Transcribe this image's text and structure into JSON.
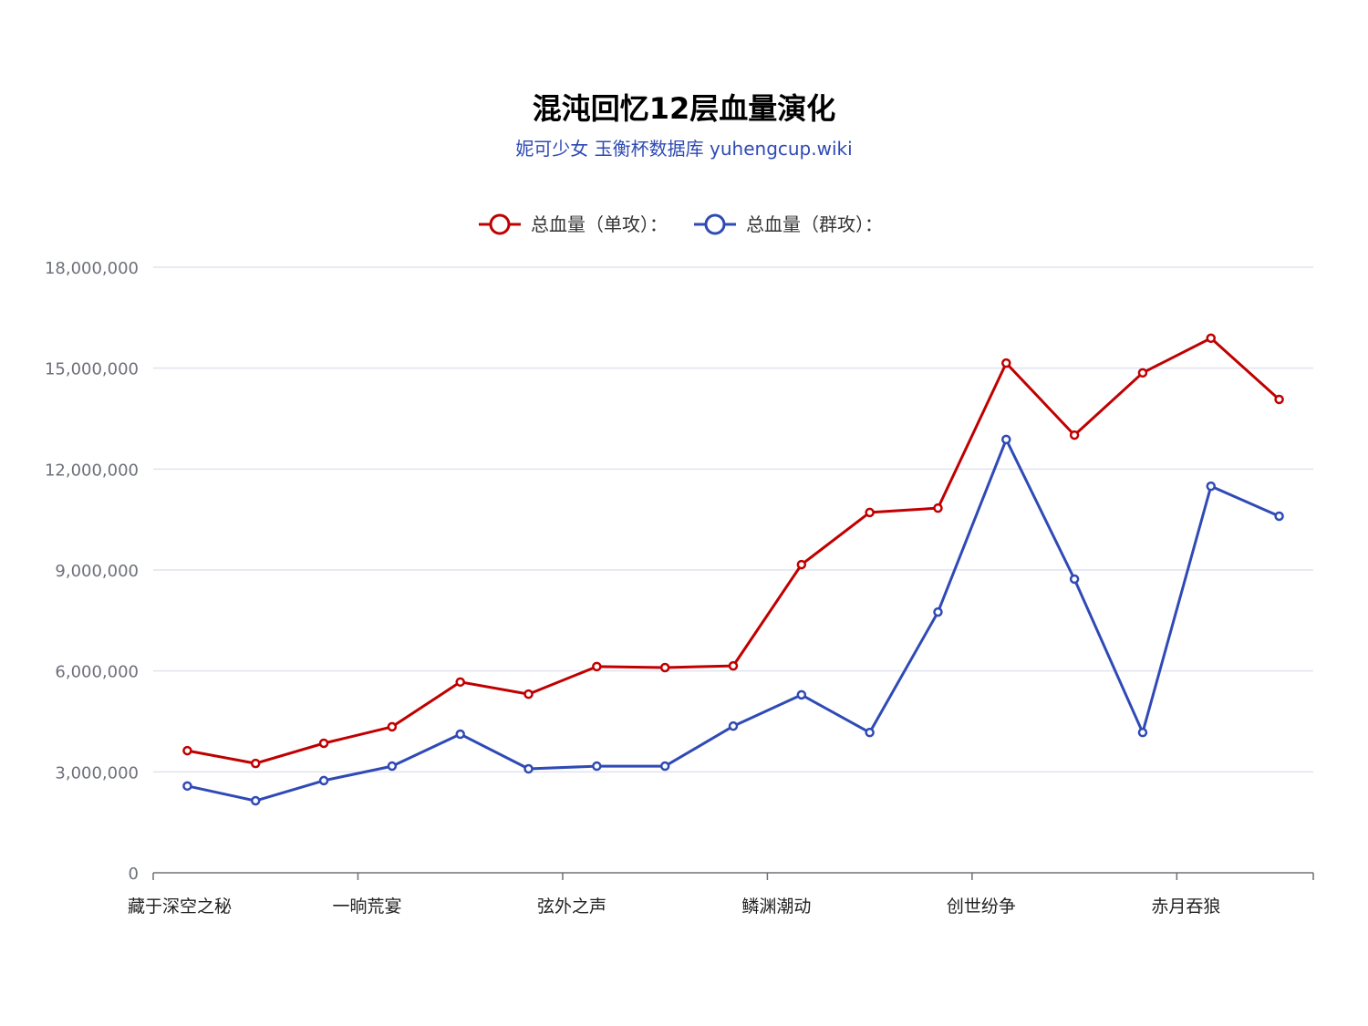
{
  "header": {
    "title": "混沌回忆12层血量演化",
    "subtitle": "妮可少女 玉衡杯数据库 yuhengcup.wiki"
  },
  "legend": {
    "items": [
      {
        "label": "总血量（单攻）：",
        "color": "#c00000"
      },
      {
        "label": "总血量（群攻）：",
        "color": "#2f4ab5"
      }
    ]
  },
  "chart_data": {
    "type": "line",
    "title": "混沌回忆12层血量演化",
    "subtitle": "妮可少女 玉衡杯数据库 yuhengcup.wiki",
    "xlabel": "",
    "ylabel": "",
    "ylim": [
      0,
      18000000
    ],
    "yticks": [
      "0",
      "3,000,000",
      "6,000,000",
      "9,000,000",
      "12,000,000",
      "15,000,000",
      "18,000,000"
    ],
    "xtick_labels": [
      "藏于深空之秘",
      "一晌荒宴",
      "弦外之声",
      "鳞渊潮动",
      "创世纷争",
      "赤月吞狼"
    ],
    "xtick_positions": [
      0,
      3,
      6,
      9,
      12,
      15
    ],
    "x": [
      1,
      2,
      3,
      4,
      5,
      6,
      7,
      8,
      9,
      10,
      11,
      12,
      13,
      14,
      15,
      16,
      17
    ],
    "grid": true,
    "legend_position": "top",
    "series": [
      {
        "name": "总血量（单攻）：",
        "color": "#c00000",
        "values": [
          3630000,
          3250000,
          3850000,
          4340000,
          5670000,
          5310000,
          6130000,
          6100000,
          6150000,
          9160000,
          10710000,
          10840000,
          15150000,
          13010000,
          14860000,
          15890000,
          14070000
        ]
      },
      {
        "name": "总血量（群攻）：",
        "color": "#2f4ab5",
        "values": [
          2580000,
          2140000,
          2740000,
          3170000,
          4120000,
          3090000,
          3170000,
          3170000,
          4360000,
          5290000,
          4170000,
          7750000,
          12880000,
          8730000,
          4170000,
          11490000,
          10600000
        ]
      }
    ]
  }
}
